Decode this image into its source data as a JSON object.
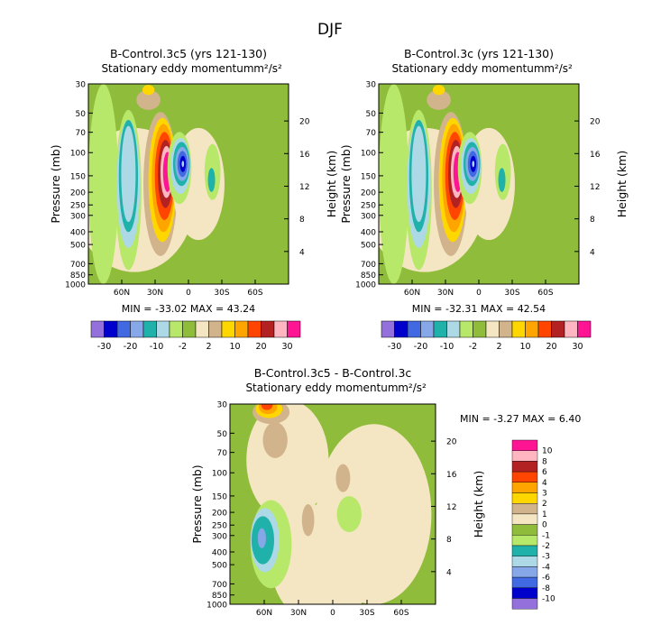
{
  "figure_title": "DJF",
  "colors": {
    "neg10": "#9370db",
    "neg8": "#0000cd",
    "neg6": "#4169e1",
    "neg4": "#87a8e8",
    "neg3": "#20b2aa",
    "neg2": "#add8e6",
    "neg1": "#b8e86a",
    "zero": "#8fbc3a",
    "pos1": "#f5e6c3",
    "pos2": "#d2b48c",
    "pos3": "#ffd700",
    "pos4": "#ffa500",
    "pos6": "#ff4500",
    "pos8": "#b22222",
    "pos9": "#ffb6c1",
    "pos10": "#ff1493"
  },
  "chart_data": [
    {
      "type": "heatmap",
      "title": "B-Control.3c5 (yrs 121-130)",
      "subtitle": "Stationary eddy momentum",
      "units": "m²/s²",
      "ylabel": "Pressure (mb)",
      "y2label": "Height (km)",
      "x_ticks": [
        "60N",
        "30N",
        "0",
        "30S",
        "60S"
      ],
      "y_ticks": [
        "30",
        "50",
        "70",
        "100",
        "150",
        "200",
        "250",
        "300",
        "400",
        "500",
        "700",
        "850",
        "1000"
      ],
      "height_ticks": [
        "20",
        "16",
        "12",
        "8",
        "4"
      ],
      "stats": {
        "min": "-33.02",
        "max": "43.24"
      },
      "stats_text": "MIN = -33.02   MAX = 43.24",
      "colorbar_labels": [
        "-30",
        "-20",
        "-10",
        "-2",
        "2",
        "10",
        "20",
        "30"
      ]
    },
    {
      "type": "heatmap",
      "title": "B-Control.3c (yrs 121-130)",
      "subtitle": "Stationary eddy momentum",
      "units": "m²/s²",
      "ylabel": "Pressure (mb)",
      "y2label": "Height (km)",
      "x_ticks": [
        "60N",
        "30N",
        "0",
        "30S",
        "60S"
      ],
      "y_ticks": [
        "30",
        "50",
        "70",
        "100",
        "150",
        "200",
        "250",
        "300",
        "400",
        "500",
        "700",
        "850",
        "1000"
      ],
      "height_ticks": [
        "20",
        "16",
        "12",
        "8",
        "4"
      ],
      "stats": {
        "min": "-32.31",
        "max": "42.54"
      },
      "stats_text": "MIN = -32.31   MAX = 42.54",
      "colorbar_labels": [
        "-30",
        "-20",
        "-10",
        "-2",
        "2",
        "10",
        "20",
        "30"
      ]
    },
    {
      "type": "heatmap",
      "title": "B-Control.3c5 - B-Control.3c",
      "subtitle": "Stationary eddy momentum",
      "units": "m²/s²",
      "ylabel": "Pressure (mb)",
      "y2label": "Height (km)",
      "x_ticks": [
        "60N",
        "30N",
        "0",
        "30S",
        "60S"
      ],
      "y_ticks": [
        "30",
        "50",
        "70",
        "100",
        "150",
        "200",
        "250",
        "300",
        "400",
        "500",
        "700",
        "850",
        "1000"
      ],
      "height_ticks": [
        "20",
        "16",
        "12",
        "8",
        "4"
      ],
      "stats": {
        "min": "-3.27",
        "max": "6.40"
      },
      "stats_text": "MIN =   -3.27   MAX =    6.40",
      "colorbar_labels": [
        "10",
        "8",
        "6",
        "4",
        "3",
        "2",
        "1",
        "0",
        "-1",
        "-2",
        "-3",
        "-4",
        "-6",
        "-8",
        "-10"
      ]
    }
  ]
}
